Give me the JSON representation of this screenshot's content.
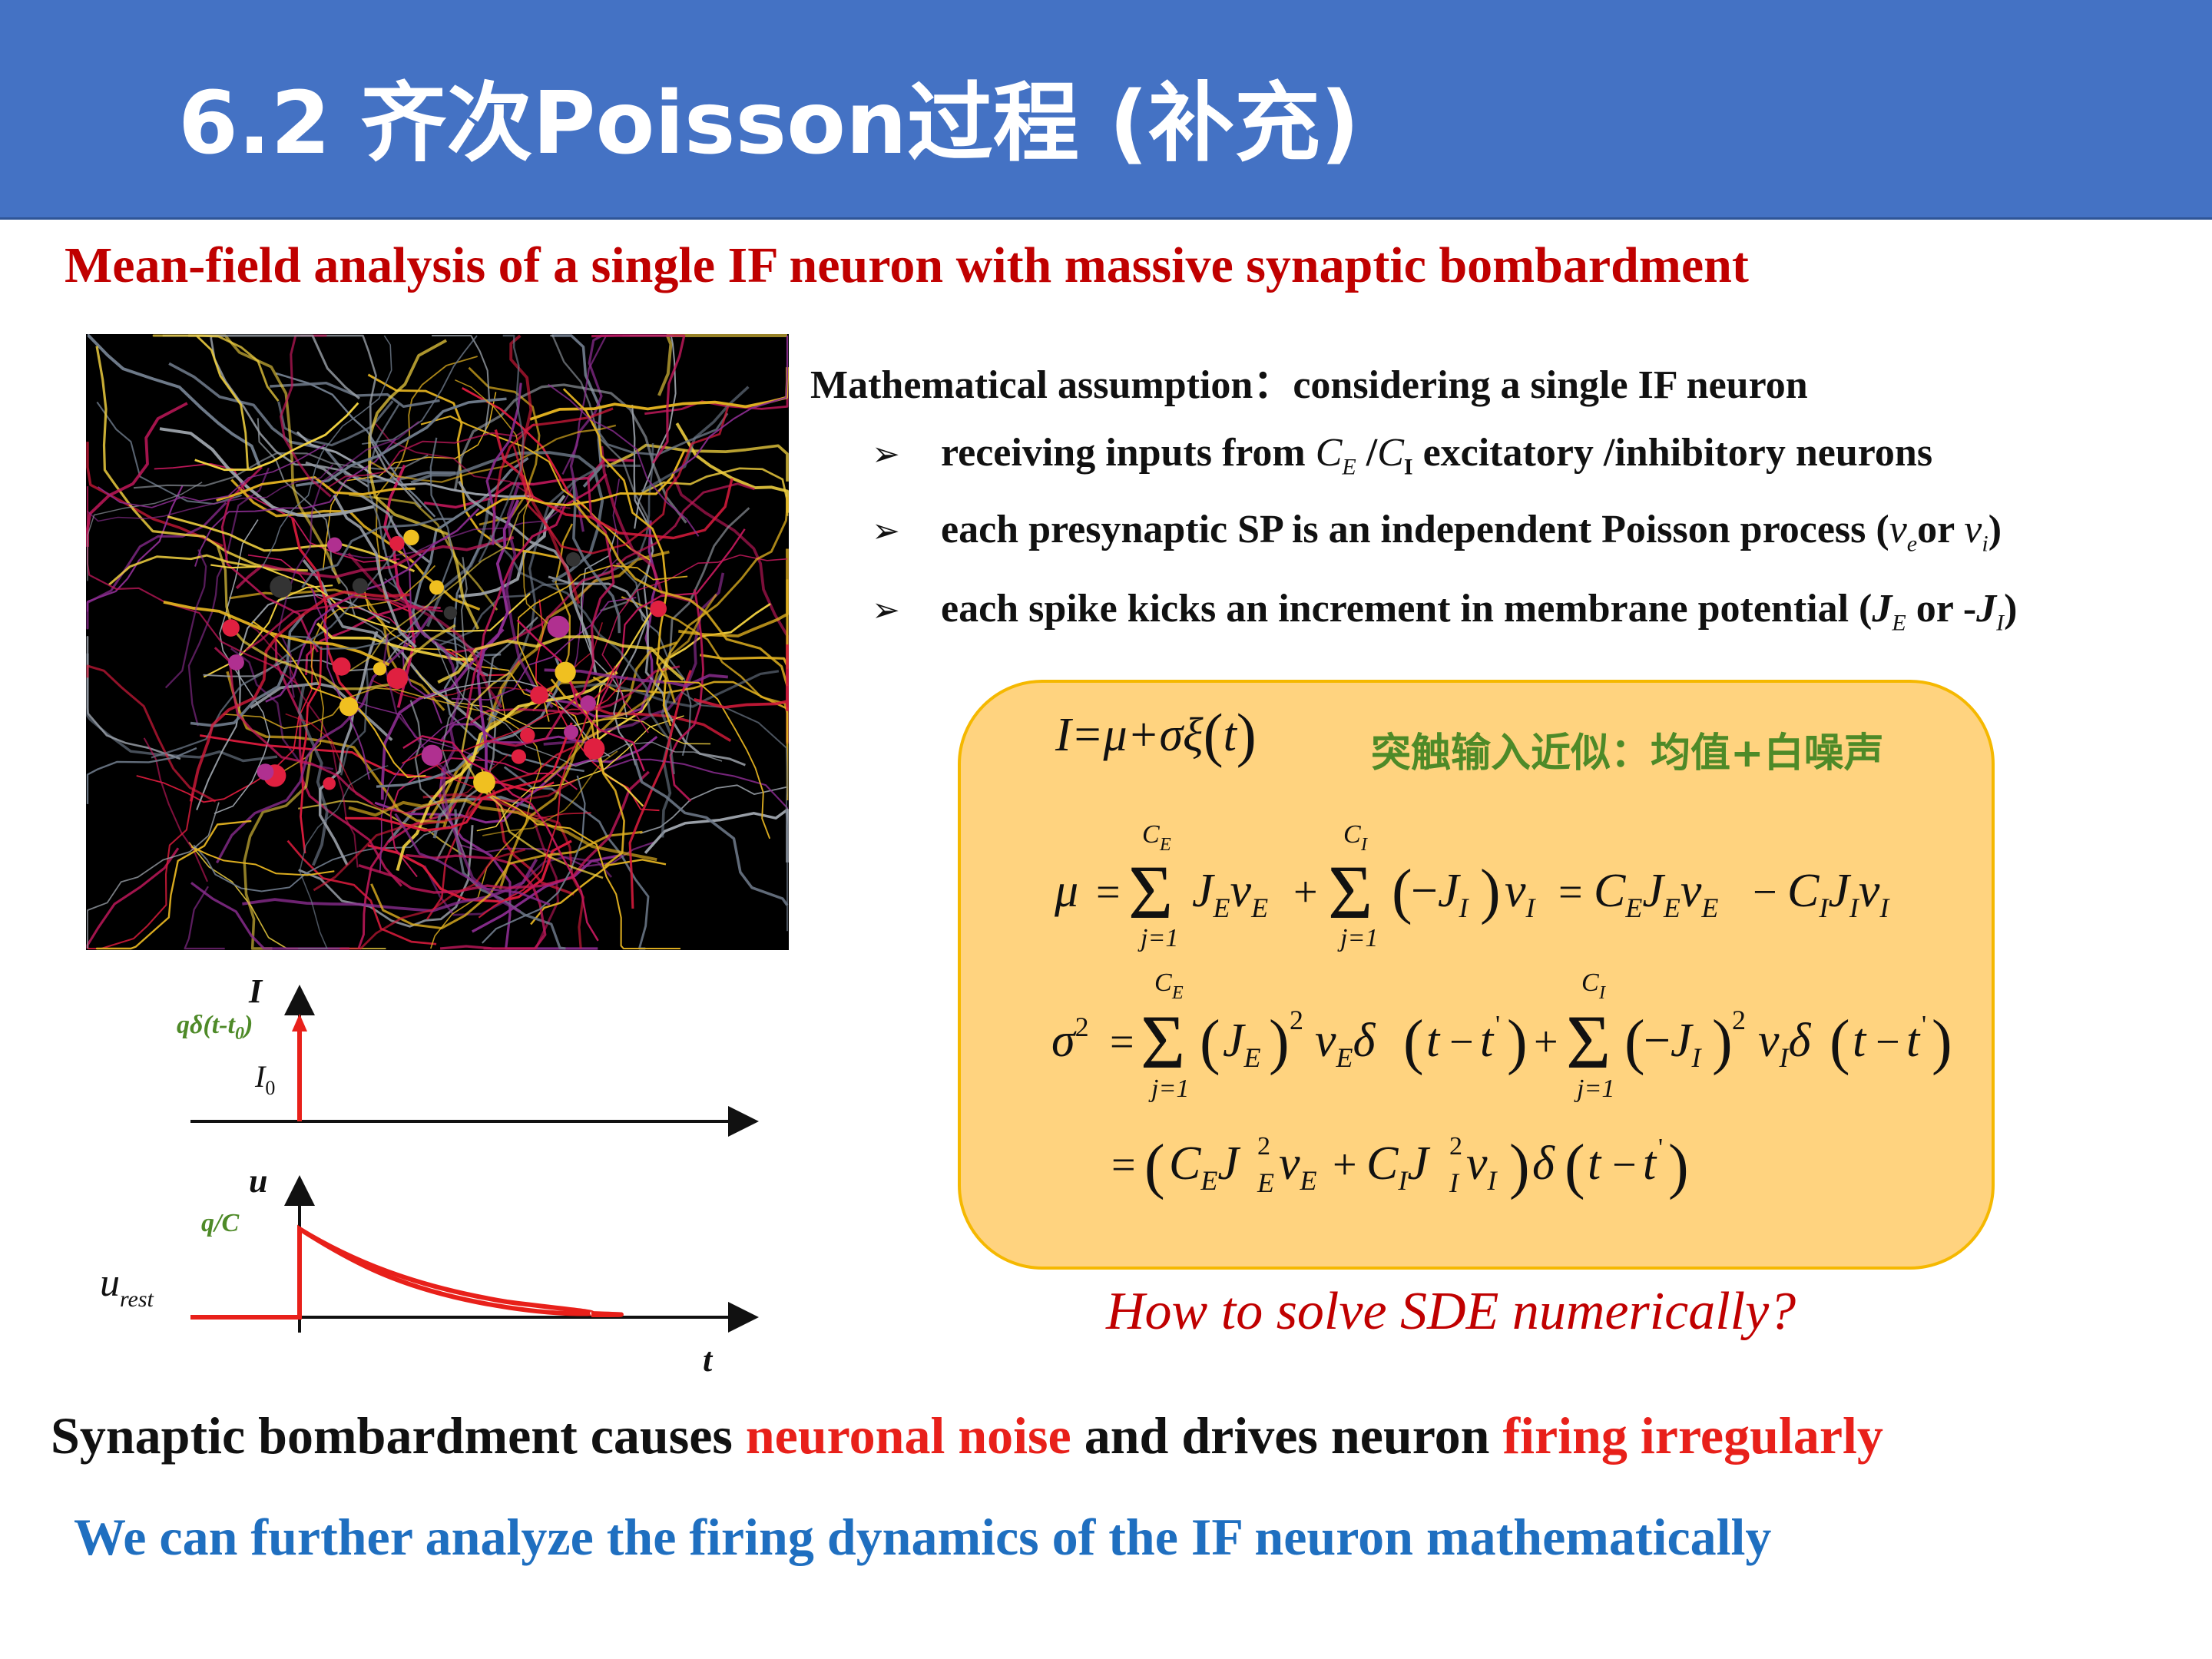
{
  "header": {
    "title": "6.2 齐次Poisson过程 (补充)",
    "color": "#4472C4"
  },
  "subtitle": "Mean-field analysis of a single IF neuron with massive synaptic bombardment",
  "assumptions": {
    "heading": "Mathematical assumption：considering a single IF neuron",
    "bullets": [
      {
        "prefix": "receiving inputs from ",
        "v1": "C",
        "s1": "E",
        "mid": " /",
        "v2": "C",
        "s2": "I",
        "suffix": " excitatory /inhibitory neurons"
      },
      {
        "prefix": "each  presynaptic SP is an independent Poisson process (",
        "v1": "v",
        "s1": "e",
        "mid": "or ",
        "v2": "v",
        "s2": "i",
        "suffix": ")"
      },
      {
        "prefix": "each spike kicks an increment in membrane potential (",
        "v1": "J",
        "s1": "E",
        "mid": " or -",
        "v2": "J",
        "s2": "I",
        "suffix": ")"
      }
    ]
  },
  "equations": {
    "note": "突触输入近似：均值+白噪声",
    "sum_lower": "j=1",
    "sum_upper_e": "C",
    "sum_upper_e_sub": "E",
    "sum_upper_i": "C",
    "sum_upper_i_sub": "I"
  },
  "plot": {
    "current_axis_label": "I",
    "impulse_label": "qδ(t-t",
    "impulse_label_sub": "0",
    "impulse_label_end": ")",
    "baseline_label": "I",
    "baseline_label_sub": "0",
    "potential_axis_label": "u",
    "jump_label": "q/C",
    "rest_label": "u",
    "rest_label_sub": "rest",
    "time_label": "t"
  },
  "question": "How to solve SDE numerically?",
  "conclusion": {
    "line1_a": "Synaptic bombardment causes ",
    "line1_b": "neuronal noise",
    "line1_c": " and drives neuron ",
    "line1_d": "firing irregularly",
    "line2": "We can further analyze the firing dynamics of the IF neuron mathematically"
  },
  "colors": {
    "accent_red": "#C00000",
    "highlight_red": "#E8201A",
    "blue_text": "#1F6FC0",
    "box_fill": "#FFD37F",
    "note_green": "#4E8A28"
  }
}
